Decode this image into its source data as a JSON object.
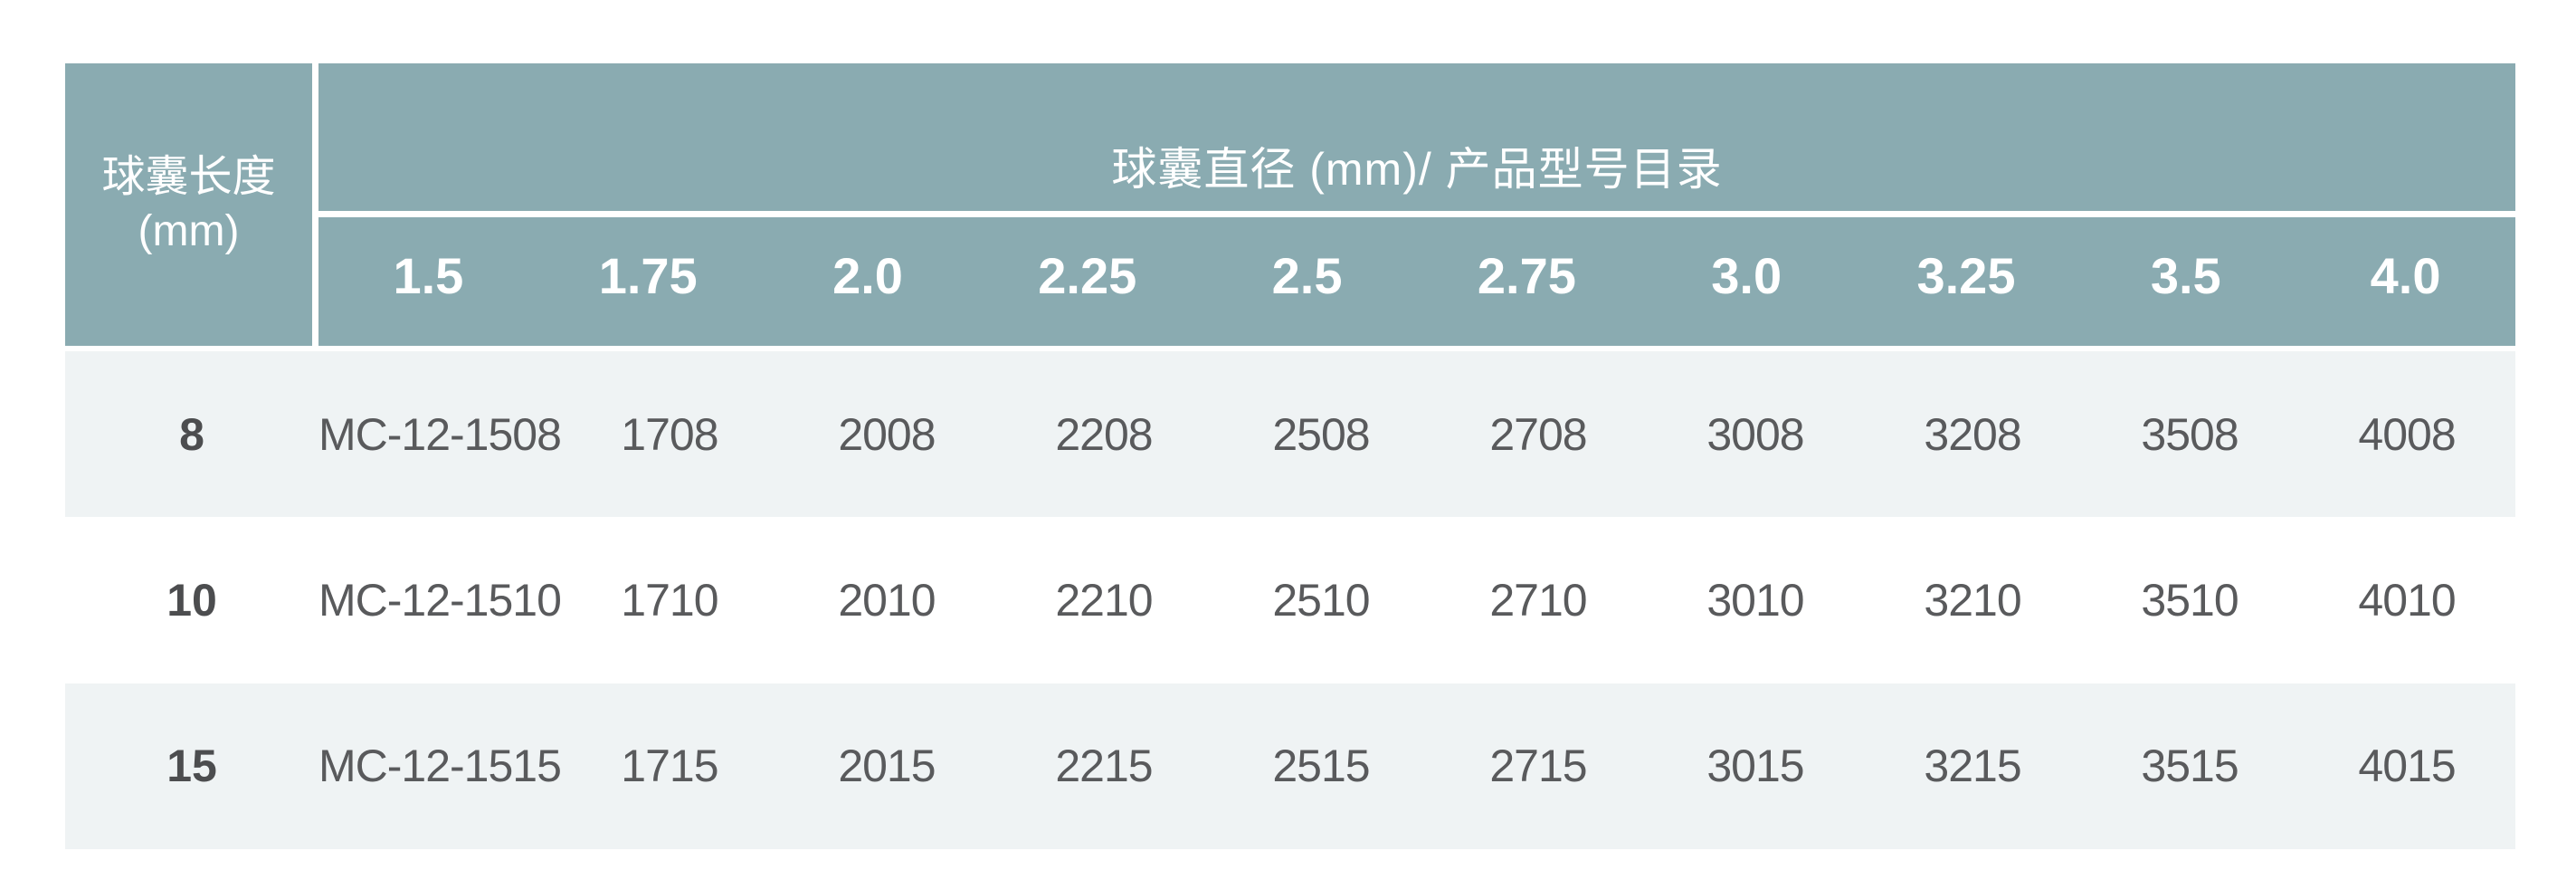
{
  "colors": {
    "header_bg": "#8aabb1",
    "header_text": "#ffffff",
    "row_alt_bg": "#eff3f4",
    "row_bg": "#ffffff",
    "body_text": "#595a5c",
    "label_text": "#4c4d4f"
  },
  "table": {
    "corner_header": {
      "line1": "球囊长度",
      "line2": "(mm)"
    },
    "span_header": "球囊直径 (mm)/ 产品型号目录",
    "diameter_columns": [
      "1.5",
      "1.75",
      "2.0",
      "2.25",
      "2.5",
      "2.75",
      "3.0",
      "3.25",
      "3.5",
      "4.0"
    ],
    "rows": [
      {
        "length": "8",
        "cells": [
          "MC-12-1508",
          "1708",
          "2008",
          "2208",
          "2508",
          "2708",
          "3008",
          "3208",
          "3508",
          "4008"
        ]
      },
      {
        "length": "10",
        "cells": [
          "MC-12-1510",
          "1710",
          "2010",
          "2210",
          "2510",
          "2710",
          "3010",
          "3210",
          "3510",
          "4010"
        ]
      },
      {
        "length": "15",
        "cells": [
          "MC-12-1515",
          "1715",
          "2015",
          "2215",
          "2515",
          "2715",
          "3015",
          "3215",
          "3515",
          "4015"
        ]
      }
    ]
  }
}
